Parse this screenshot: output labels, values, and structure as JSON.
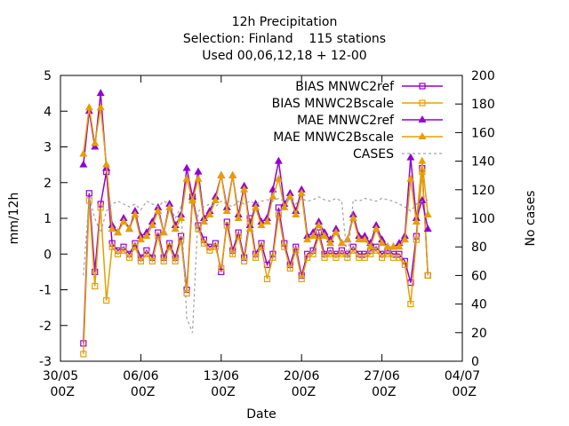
{
  "chart_data": {
    "type": "line",
    "title": [
      "12h Precipitation",
      "Selection: Finland    115 stations",
      "Used 00,06,12,18 + 12-00"
    ],
    "xlabel": "Date",
    "ylabel": "mm/12h",
    "y2label": "No cases",
    "legend": "top-right",
    "x": [
      "01/06 00Z",
      "01/06 12Z",
      "02/06 00Z",
      "02/06 12Z",
      "03/06 00Z",
      "03/06 12Z",
      "04/06 00Z",
      "04/06 12Z",
      "05/06 00Z",
      "05/06 12Z",
      "06/06 00Z",
      "06/06 12Z",
      "07/06 00Z",
      "07/06 12Z",
      "08/06 00Z",
      "08/06 12Z",
      "09/06 00Z",
      "09/06 12Z",
      "10/06 00Z",
      "10/06 12Z",
      "11/06 00Z",
      "11/06 12Z",
      "12/06 00Z",
      "12/06 12Z",
      "13/06 00Z",
      "13/06 12Z",
      "14/06 00Z",
      "14/06 12Z",
      "15/06 00Z",
      "15/06 12Z",
      "16/06 00Z",
      "16/06 12Z",
      "17/06 00Z",
      "17/06 12Z",
      "18/06 00Z",
      "18/06 12Z",
      "19/06 00Z",
      "19/06 12Z",
      "20/06 00Z",
      "20/06 12Z",
      "21/06 00Z",
      "21/06 12Z",
      "22/06 00Z",
      "22/06 12Z",
      "23/06 00Z",
      "23/06 12Z",
      "24/06 00Z",
      "24/06 12Z",
      "25/06 00Z",
      "25/06 12Z",
      "26/06 00Z",
      "26/06 12Z",
      "27/06 00Z",
      "27/06 12Z",
      "28/06 00Z",
      "28/06 12Z",
      "29/06 00Z",
      "29/06 12Z",
      "30/06 00Z",
      "30/06 12Z",
      "01/07 00Z"
    ],
    "xlim": [
      "30/05 00Z",
      "04/07 00Z"
    ],
    "xticks": [
      "30/05 00Z",
      "06/06 00Z",
      "13/06 00Z",
      "20/06 00Z",
      "27/06 00Z",
      "04/07 00Z"
    ],
    "ylim": [
      -3,
      5
    ],
    "yticks": [
      -3,
      -2,
      -1,
      0,
      1,
      2,
      3,
      4,
      5
    ],
    "y2lim": [
      0,
      200
    ],
    "y2ticks": [
      0,
      20,
      40,
      60,
      80,
      100,
      120,
      140,
      160,
      180,
      200
    ],
    "series": [
      {
        "name": "BIAS MNWC2ref",
        "color": "#9400d3",
        "marker": "square",
        "values": [
          -2.5,
          1.7,
          -0.5,
          1.4,
          2.3,
          0.3,
          0.1,
          0.2,
          0.0,
          0.3,
          -0.1,
          0.1,
          -0.1,
          0.6,
          -0.1,
          0.3,
          -0.1,
          0.5,
          -1.0,
          1.6,
          0.8,
          0.4,
          0.2,
          0.3,
          -0.5,
          0.9,
          0.1,
          0.6,
          -0.1,
          1.0,
          0.0,
          0.3,
          -0.3,
          0.0,
          1.3,
          0.3,
          -0.3,
          0.2,
          -0.6,
          0.0,
          0.1,
          0.6,
          0.0,
          0.1,
          0.0,
          0.1,
          0.0,
          0.2,
          0.0,
          0.0,
          0.1,
          0.2,
          0.0,
          0.1,
          0.0,
          0.0,
          -0.2,
          -0.8,
          0.5,
          2.4,
          -0.6
        ]
      },
      {
        "name": "BIAS MNWC2Bscale",
        "color": "#e69f00",
        "marker": "square",
        "values": [
          -2.8,
          1.5,
          -0.9,
          1.3,
          -1.3,
          0.2,
          0.0,
          0.1,
          -0.1,
          0.2,
          -0.2,
          0.0,
          -0.2,
          0.5,
          -0.2,
          0.2,
          -0.2,
          0.4,
          -1.1,
          1.5,
          0.7,
          0.3,
          0.1,
          0.2,
          -0.4,
          0.8,
          0.0,
          0.5,
          -0.2,
          0.9,
          -0.1,
          0.2,
          -0.7,
          -0.1,
          1.1,
          0.2,
          -0.4,
          0.1,
          -0.7,
          -0.1,
          0.0,
          0.5,
          -0.1,
          0.0,
          -0.1,
          0.0,
          -0.1,
          0.1,
          -0.1,
          -0.1,
          0.0,
          0.1,
          -0.1,
          0.0,
          -0.1,
          -0.1,
          -0.3,
          -1.4,
          0.4,
          2.3,
          -0.6
        ]
      },
      {
        "name": "MAE MNWC2ref",
        "color": "#9400d3",
        "marker": "triangle",
        "values": [
          2.5,
          4.0,
          3.0,
          4.5,
          2.4,
          0.8,
          0.6,
          1.0,
          0.7,
          1.2,
          0.5,
          0.6,
          0.9,
          1.3,
          0.6,
          1.4,
          0.8,
          1.1,
          2.4,
          1.6,
          2.3,
          1.0,
          1.2,
          1.6,
          2.2,
          1.3,
          2.2,
          1.1,
          1.9,
          0.8,
          1.4,
          0.9,
          1.0,
          1.8,
          2.6,
          1.4,
          1.7,
          1.2,
          1.8,
          0.5,
          0.6,
          0.9,
          0.6,
          0.4,
          0.7,
          0.3,
          0.4,
          1.1,
          0.5,
          0.5,
          0.3,
          0.8,
          0.4,
          0.2,
          0.2,
          0.3,
          0.5,
          2.7,
          1.0,
          1.5,
          0.7
        ]
      },
      {
        "name": "MAE MNWC2Bscale",
        "color": "#e69f00",
        "marker": "triangle",
        "values": [
          2.8,
          4.1,
          3.1,
          4.1,
          2.5,
          0.7,
          0.6,
          0.9,
          0.7,
          1.1,
          0.4,
          0.5,
          0.8,
          1.2,
          0.6,
          1.3,
          0.7,
          1.0,
          2.1,
          1.5,
          2.1,
          0.9,
          1.1,
          1.5,
          2.2,
          1.2,
          2.2,
          1.0,
          1.8,
          0.7,
          1.3,
          0.8,
          0.9,
          1.6,
          2.1,
          1.3,
          1.6,
          1.1,
          1.7,
          0.4,
          0.5,
          0.8,
          0.5,
          0.3,
          0.6,
          0.3,
          0.4,
          1.0,
          0.4,
          0.4,
          0.2,
          0.7,
          0.3,
          0.2,
          0.2,
          0.2,
          0.4,
          2.1,
          0.9,
          2.6,
          1.1
        ]
      },
      {
        "name": "CASES",
        "color": "#a0a0a0",
        "marker": "none",
        "dash": true,
        "axis": "y2",
        "values": [
          60,
          115,
          100,
          90,
          105,
          110,
          112,
          110,
          108,
          110,
          106,
          112,
          110,
          108,
          112,
          110,
          100,
          108,
          30,
          20,
          105,
          108,
          110,
          108,
          112,
          110,
          108,
          112,
          110,
          112,
          110,
          112,
          113,
          112,
          114,
          112,
          113,
          110,
          114,
          112,
          113,
          115,
          113,
          112,
          114,
          112,
          70,
          113,
          112,
          114,
          113,
          112,
          114,
          113,
          112,
          110,
          108,
          105,
          110,
          112,
          113
        ]
      }
    ]
  }
}
